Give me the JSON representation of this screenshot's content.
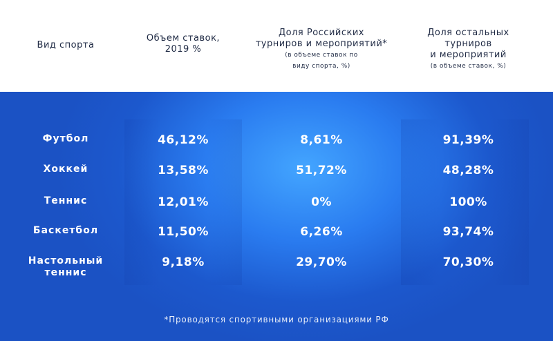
{
  "header": {
    "col_sport": "Вид спорта",
    "col_volume": "Объем ставок,\n2019 %",
    "col_russian": "Доля Российских\nтурниров и мероприятий*",
    "col_russian_sub": "(в объеме ставок по\nвиду спорта, %)",
    "col_other": "Доля остальных\nтурниров\nи мероприятий",
    "col_other_sub": "(в объеме ставок, %)"
  },
  "rows": [
    {
      "sport": "Футбол",
      "volume": "46,12%",
      "russian": "8,61%",
      "other": "91,39%"
    },
    {
      "sport": "Хоккей",
      "volume": "13,58%",
      "russian": "51,72%",
      "other": "48,28%"
    },
    {
      "sport": "Теннис",
      "volume": "12,01%",
      "russian": "0%",
      "other": "100%"
    },
    {
      "sport": "Баскетбол",
      "volume": "11,50%",
      "russian": "6,26%",
      "other": "93,74%"
    },
    {
      "sport": "Настольный\nтеннис",
      "volume": "9,18%",
      "russian": "29,70%",
      "other": "70,30%"
    }
  ],
  "footnote": "*Проводятся спортивными организациями РФ",
  "colors": {
    "panel_blue": "#2a7cf0",
    "header_text": "#1f2a44"
  }
}
